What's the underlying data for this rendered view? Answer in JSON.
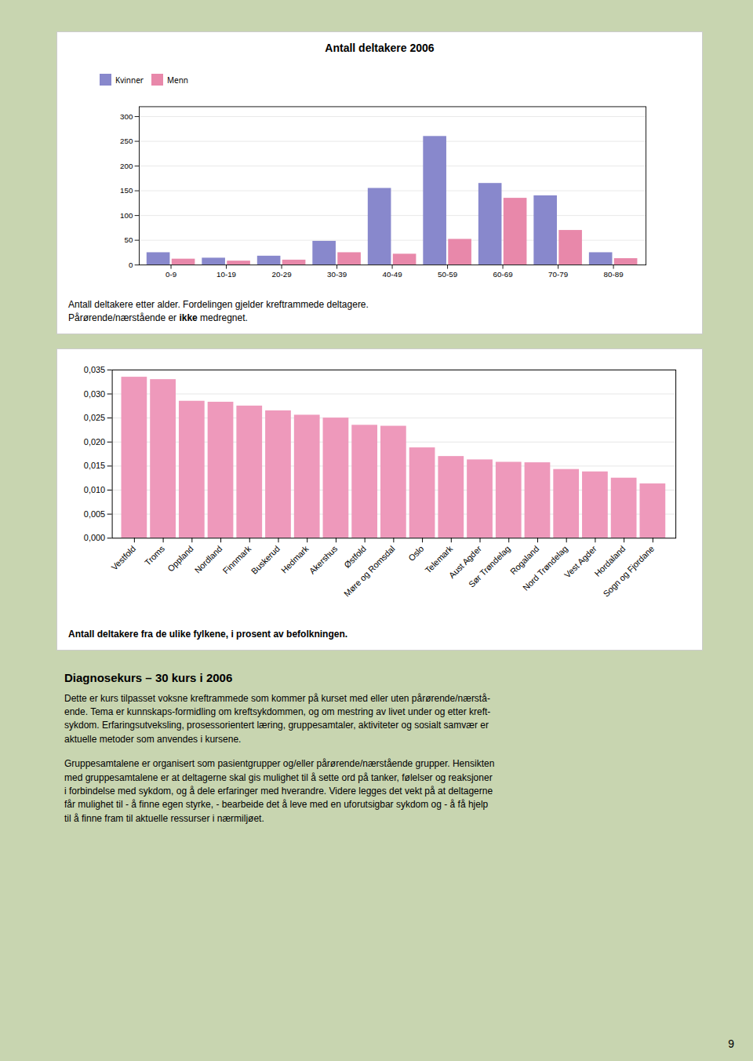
{
  "chart_data": [
    {
      "type": "bar",
      "title": "Antall deltakere 2006",
      "categories": [
        "0-9",
        "10-19",
        "20-29",
        "30-39",
        "40-49",
        "50-59",
        "60-69",
        "70-79",
        "80-89"
      ],
      "series": [
        {
          "name": "Kvinner",
          "color": "#8888cc",
          "values": [
            25,
            14,
            18,
            48,
            155,
            260,
            165,
            140,
            25
          ]
        },
        {
          "name": "Menn",
          "color": "#e888aa",
          "values": [
            12,
            8,
            10,
            25,
            22,
            52,
            135,
            70,
            13
          ]
        }
      ],
      "ylim": [
        0,
        320
      ],
      "yticks": [
        0,
        50,
        100,
        150,
        200,
        250,
        300
      ],
      "grid": true,
      "legend": "upper left",
      "caption": [
        [
          {
            "text": "Antall deltakere etter alder. Fordelingen gjelder kreftrammede deltagere.",
            "bold": false
          }
        ],
        [
          {
            "text": "Pårørende/nærstående er ",
            "bold": false
          },
          {
            "text": "ikke",
            "bold": true
          },
          {
            "text": " medregnet.",
            "bold": false
          }
        ]
      ]
    },
    {
      "type": "bar",
      "categories": [
        "Vestfold",
        "Troms",
        "Oppland",
        "Nordland",
        "Finnmark",
        "Buskerud",
        "Hedmark",
        "Akershus",
        "Østfold",
        "Møre og Romsdal",
        "Oslo",
        "Telemark",
        "Aust Agder",
        "Sør Trøndelag",
        "Rogaland",
        "Nord Trøndelag",
        "Vest Agder",
        "Hordaland",
        "Sogn og Fjordane"
      ],
      "values": [
        0.0335,
        0.033,
        0.0285,
        0.0283,
        0.0275,
        0.0265,
        0.0256,
        0.025,
        0.0235,
        0.0233,
        0.0188,
        0.017,
        0.0163,
        0.0158,
        0.0157,
        0.0143,
        0.0138,
        0.0125,
        0.0113
      ],
      "color": "#ee99bb",
      "ylim": [
        0,
        0.035
      ],
      "yticks": [
        {
          "value": 0.0,
          "label": "0,000"
        },
        {
          "value": 0.005,
          "label": "0,005"
        },
        {
          "value": 0.01,
          "label": "0,010"
        },
        {
          "value": 0.015,
          "label": "0,015"
        },
        {
          "value": 0.02,
          "label": "0,020"
        },
        {
          "value": 0.025,
          "label": "0,025"
        },
        {
          "value": 0.03,
          "label": "0,030"
        },
        {
          "value": 0.035,
          "label": "0,035"
        }
      ],
      "grid": true,
      "caption": [
        [
          {
            "text": "Antall deltakere fra de ulike fylkene, i prosent av befolkningen.",
            "bold": true
          }
        ]
      ]
    }
  ],
  "text_section": {
    "title": "Diagnosekurs – 30 kurs i 2006",
    "paragraphs": [
      "Dette er kurs tilpasset voksne kreftrammede som kommer på kurset med eller uten pårørende/nærstå-\nende. Tema er kunnskaps-formidling om kreftsykdommen, og om mestring av livet under og etter kreft-\nsykdom. Erfaringsutveksling,  prosessorientert læring, gruppesamtaler, aktiviteter og sosialt samvær er\naktuelle metoder som anvendes i kursene.",
      "Gruppesamtalene er organisert som pasientgrupper og/eller pårørende/nærstående grupper. Hensikten\nmed gruppesamtalene er at deltagerne skal gis mulighet til å sette ord på tanker, følelser og reaksjoner\ni forbindelse med sykdom, og å dele erfaringer med hverandre. Videre legges det vekt på at deltagerne\nfår mulighet til - å finne egen styrke, - bearbeide det å leve med en uforutsigbar sykdom og - å få hjelp\ntil å finne fram til aktuelle ressurser i nærmiljøet."
    ]
  },
  "page_number": "9"
}
